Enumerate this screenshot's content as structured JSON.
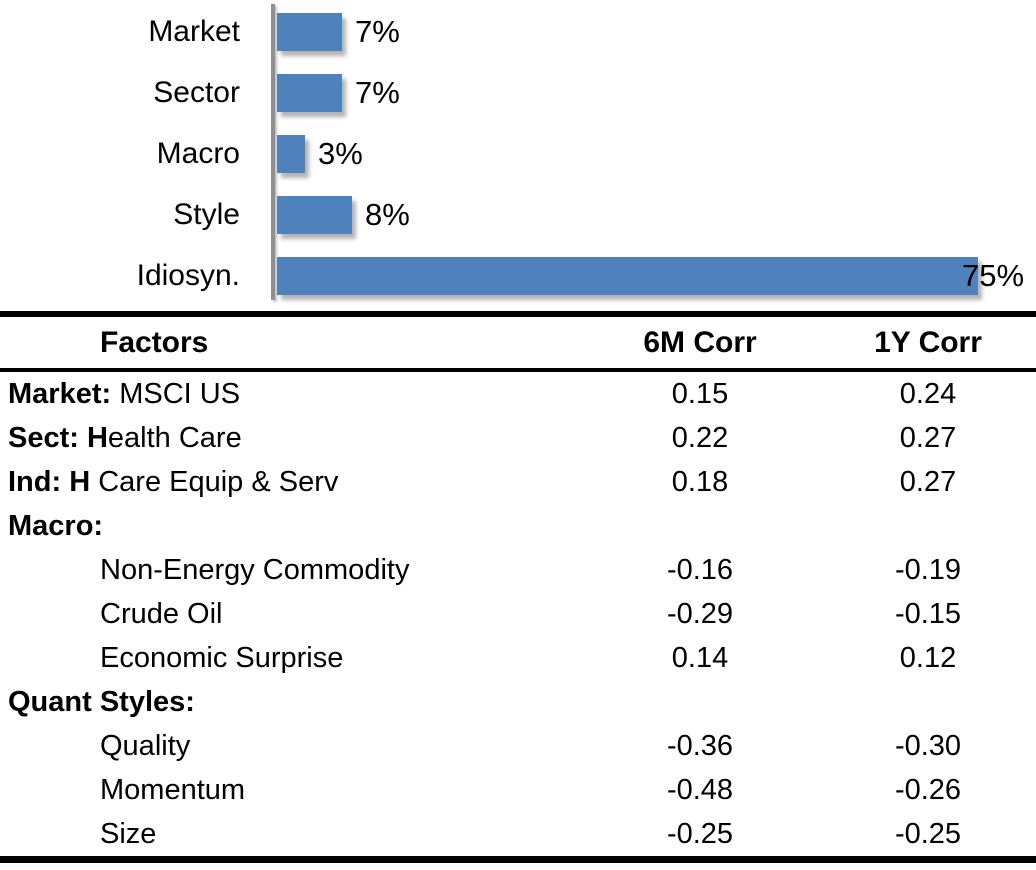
{
  "colors": {
    "bar_fill": "#4f81bd",
    "axis_line": "#8f8f8f",
    "rule": "#000000"
  },
  "chart_data": {
    "type": "bar",
    "orientation": "horizontal",
    "title": "",
    "categories": [
      "Market",
      "Sector",
      "Macro",
      "Style",
      "Idiosyn."
    ],
    "values": [
      7,
      7,
      3,
      8,
      75
    ],
    "value_labels": [
      "7%",
      "7%",
      "3%",
      "8%",
      "75%"
    ],
    "xlim": [
      0,
      80
    ],
    "grid": false,
    "legend": false,
    "bar_color": "#4f81bd"
  },
  "table": {
    "headers": [
      "Factors",
      "6M Corr",
      "1Y Corr"
    ],
    "rows": [
      {
        "bold": "Market:",
        "rest": " MSCI US",
        "indent": false,
        "c1": "0.15",
        "c2": "0.24"
      },
      {
        "bold": "Sect: H",
        "rest": "ealth Care",
        "indent": false,
        "c1": "0.22",
        "c2": "0.27"
      },
      {
        "bold": "Ind: H",
        "rest": " Care Equip & Serv",
        "indent": false,
        "c1": "0.18",
        "c2": "0.27"
      },
      {
        "bold": "Macro:",
        "rest": "",
        "indent": false,
        "c1": "",
        "c2": ""
      },
      {
        "bold": "",
        "rest": "Non-Energy Commodity",
        "indent": true,
        "c1": "-0.16",
        "c2": "-0.19"
      },
      {
        "bold": "",
        "rest": "Crude Oil",
        "indent": true,
        "c1": "-0.29",
        "c2": "-0.15"
      },
      {
        "bold": "",
        "rest": "Economic Surprise",
        "indent": true,
        "c1": "0.14",
        "c2": "0.12"
      },
      {
        "bold": "Quant Styles:",
        "rest": "",
        "indent": false,
        "c1": "",
        "c2": ""
      },
      {
        "bold": "",
        "rest": "Quality",
        "indent": true,
        "c1": "-0.36",
        "c2": "-0.30"
      },
      {
        "bold": "",
        "rest": "Momentum",
        "indent": true,
        "c1": "-0.48",
        "c2": "-0.26"
      },
      {
        "bold": "",
        "rest": "Size",
        "indent": true,
        "c1": "-0.25",
        "c2": "-0.25"
      }
    ]
  }
}
